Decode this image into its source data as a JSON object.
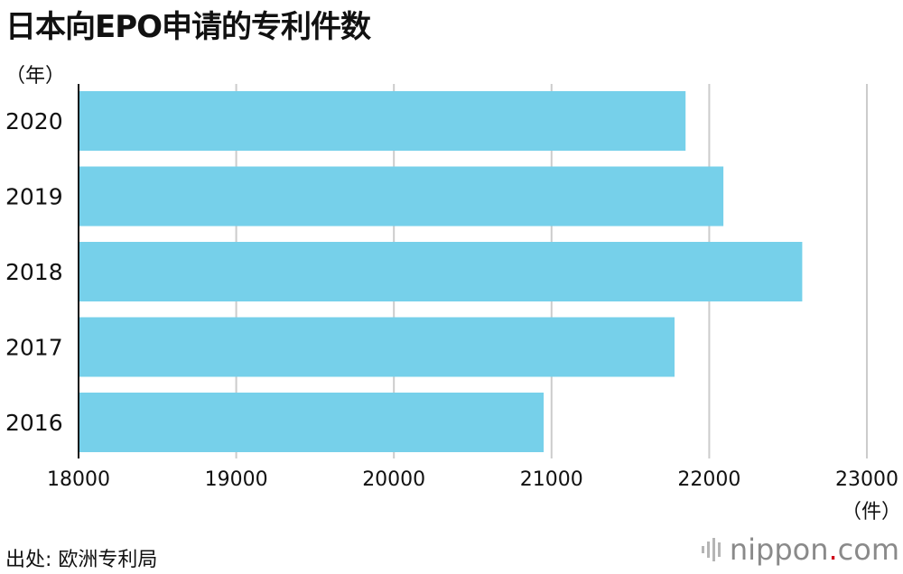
{
  "title": "日本向EPO申请的专利件数",
  "source": "出处: 欧洲专利局",
  "brand": {
    "name_part1": "nippon",
    "dot": ".",
    "name_part2": "com",
    "dot_color": "#d0021b",
    "text_color": "#8a8a8a",
    "icon": "sound-bars-icon"
  },
  "chart_data": {
    "type": "bar",
    "orientation": "horizontal",
    "title": "日本向EPO申请的专利件数",
    "ylabel": "（年）",
    "xlabel": "（件）",
    "categories": [
      "2020",
      "2019",
      "2018",
      "2017",
      "2016"
    ],
    "values": [
      21850,
      22090,
      22590,
      21780,
      20950
    ],
    "xlim": [
      18000,
      23000
    ],
    "xticks": [
      18000,
      19000,
      20000,
      21000,
      22000,
      23000
    ],
    "bar_color": "#76d0ea",
    "grid_color": "#cccccc",
    "grid": true,
    "legend": "none"
  }
}
